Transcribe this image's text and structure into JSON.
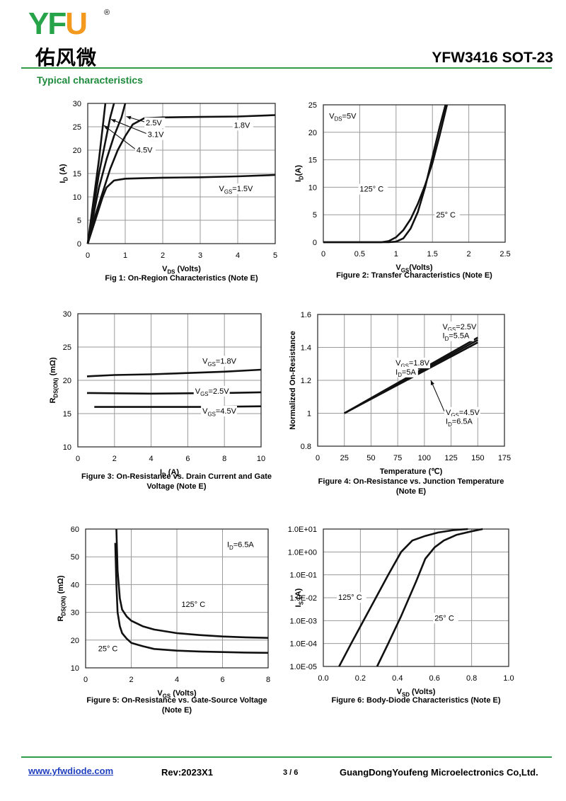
{
  "header": {
    "logo_y": "Y",
    "logo_f": "F",
    "logo_u": "U",
    "logo_reg": "®",
    "logo_cn": "佑风微",
    "part_title": "YFW3416 SOT-23",
    "section_title": "Typical characteristics"
  },
  "footer": {
    "website": "www.yfwdiode.com",
    "revision": "Rev:2023X1",
    "page": "3 / 6",
    "company": "GuangDongYoufeng Microelectronics Co,Ltd."
  },
  "colors": {
    "green": "#2e9e4a",
    "orange": "#f39a1e",
    "grid": "#9a9a9a",
    "curve": "#111111"
  },
  "chart_data": [
    {
      "id": "fig1",
      "type": "line",
      "caption": "Fig 1: On-Region Characteristics (Note E)",
      "xlabel": {
        "main": "V",
        "sub": "DS",
        "tail": " (Volts)"
      },
      "ylabel": {
        "main": "I",
        "sub": "D",
        "tail": " (A)"
      },
      "xlim": [
        0,
        5
      ],
      "ylim": [
        0,
        30
      ],
      "xticks": [
        "0",
        "1",
        "2",
        "3",
        "4",
        "5"
      ],
      "yticks": [
        "0",
        "5",
        "10",
        "15",
        "20",
        "25",
        "30"
      ],
      "grid": true,
      "series": [
        {
          "name": "4.5V",
          "x": [
            0,
            0.1,
            0.2,
            0.3,
            0.4,
            0.47
          ],
          "y": [
            0,
            6,
            12,
            18,
            25,
            30
          ]
        },
        {
          "name": "3.1V",
          "x": [
            0,
            0.1,
            0.2,
            0.3,
            0.4,
            0.5,
            0.6,
            0.7
          ],
          "y": [
            0,
            5,
            10,
            15,
            19,
            23,
            27,
            30
          ]
        },
        {
          "name": "2.5V",
          "x": [
            0,
            0.1,
            0.2,
            0.3,
            0.5,
            0.7,
            0.9,
            1.0
          ],
          "y": [
            0,
            4,
            8,
            12,
            18,
            23,
            27,
            30
          ]
        },
        {
          "name": "1.8V",
          "x": [
            0,
            0.1,
            0.2,
            0.4,
            0.6,
            0.8,
            1.0,
            1.2,
            1.5,
            2,
            3,
            4,
            5
          ],
          "y": [
            0,
            3,
            6,
            11,
            16,
            20,
            23,
            25.5,
            26.8,
            27,
            27.1,
            27.2,
            27.5
          ]
        },
        {
          "name": "V_GS=1.5V",
          "x": [
            0,
            0.1,
            0.2,
            0.3,
            0.4,
            0.5,
            0.7,
            1.0,
            1.5,
            2,
            3,
            4,
            5
          ],
          "y": [
            0,
            2.5,
            5,
            7.5,
            10,
            12,
            13.5,
            13.9,
            14,
            14.1,
            14.2,
            14.4,
            14.7
          ]
        }
      ],
      "labels": [
        {
          "main": "2.5V",
          "at": [
            1.55,
            25.3
          ],
          "arrow_to": [
            1.03,
            27.2
          ]
        },
        {
          "main": "3.1V",
          "at": [
            1.6,
            22.8
          ],
          "arrow_to": [
            0.62,
            26.6
          ]
        },
        {
          "main": "4.5V",
          "at": [
            1.3,
            19.5
          ],
          "arrow_to": [
            0.43,
            25.3
          ]
        },
        {
          "main": "1.8V",
          "at": [
            3.9,
            24.8
          ]
        },
        {
          "main": "V",
          "sub": "GS",
          "tail": "=1.5V",
          "at": [
            3.5,
            11.2
          ]
        }
      ]
    },
    {
      "id": "fig2",
      "type": "line",
      "caption": "Figure 2: Transfer Characteristics (Note E)",
      "xlabel": {
        "main": "V",
        "sub": "GS",
        "tail": "(Volts)"
      },
      "ylabel": {
        "main": "I",
        "sub": "D",
        "tail": "(A)"
      },
      "xlim": [
        0,
        2.5
      ],
      "ylim": [
        0,
        25
      ],
      "xticks": [
        "0",
        "0.5",
        "1",
        "1.5",
        "2",
        "2.5"
      ],
      "yticks": [
        "0",
        "5",
        "10",
        "15",
        "20",
        "25"
      ],
      "grid": true,
      "series": [
        {
          "name": "125° C",
          "x": [
            0,
            0.8,
            0.9,
            1.0,
            1.1,
            1.2,
            1.3,
            1.4,
            1.5,
            1.6,
            1.7
          ],
          "y": [
            0,
            0,
            0.2,
            0.9,
            2.2,
            4.2,
            7,
            10.4,
            14.4,
            19.5,
            25
          ]
        },
        {
          "name": "25° C",
          "x": [
            0,
            0.9,
            1.0,
            1.1,
            1.2,
            1.3,
            1.4,
            1.5,
            1.6,
            1.68
          ],
          "y": [
            0,
            0,
            0.1,
            0.7,
            2.5,
            5.5,
            10,
            15.5,
            21,
            25
          ]
        }
      ],
      "labels": [
        {
          "main": "V",
          "sub": "DS",
          "tail": "=5V",
          "at": [
            0.08,
            22.5
          ]
        },
        {
          "main": "125° C",
          "at": [
            0.5,
            9.2
          ]
        },
        {
          "main": "25° C",
          "at": [
            1.55,
            4.5
          ]
        }
      ]
    },
    {
      "id": "fig3",
      "type": "line",
      "caption": [
        "Figure 3: On-Resistance vs. Drain Current and Gate",
        "Voltage (Note E)"
      ],
      "xlabel": {
        "main": "I",
        "sub": "D",
        "tail": " (A)"
      },
      "ylabel": {
        "main": "R",
        "sub": "DS(ON)",
        "tail": " (mΩ)"
      },
      "xlim": [
        0,
        10
      ],
      "ylim": [
        10,
        30
      ],
      "xticks": [
        "0",
        "2",
        "4",
        "6",
        "8",
        "10"
      ],
      "yticks": [
        "10",
        "15",
        "20",
        "25",
        "30"
      ],
      "grid": true,
      "series": [
        {
          "name": "V_GS=1.8V",
          "x": [
            0.5,
            2,
            4,
            6,
            8,
            10
          ],
          "y": [
            20.6,
            20.8,
            20.9,
            21.1,
            21.3,
            21.6
          ]
        },
        {
          "name": "V_GS=2.5V",
          "x": [
            0.5,
            2,
            4,
            6,
            8,
            10
          ],
          "y": [
            18.1,
            18.05,
            18.0,
            18.05,
            18.1,
            18.2
          ]
        },
        {
          "name": "V_GS=4.5V",
          "x": [
            0.9,
            3,
            5,
            7,
            10
          ],
          "y": [
            16.0,
            16.0,
            16.0,
            16.0,
            16.1
          ]
        }
      ],
      "labels": [
        {
          "main": "V",
          "sub": "GS",
          "tail": "=1.8V",
          "at": [
            6.8,
            22.5
          ]
        },
        {
          "main": "V",
          "sub": "GS",
          "tail": "=2.5V",
          "at": [
            6.4,
            18.0
          ]
        },
        {
          "main": "V",
          "sub": "GS",
          "tail": "=4.5V",
          "at": [
            6.8,
            15.0
          ]
        }
      ]
    },
    {
      "id": "fig4",
      "type": "line",
      "caption": [
        "Figure 4: On-Resistance vs. Junction Temperature",
        "(Note E)"
      ],
      "xlabel": {
        "main": "Temperature (℃)"
      },
      "ylabel": {
        "main": "Normalized On-Resistance"
      },
      "xlim": [
        0,
        175
      ],
      "ylim": [
        0.8,
        1.6
      ],
      "xticks": [
        "0",
        "25",
        "50",
        "75",
        "100",
        "125",
        "150",
        "175"
      ],
      "yticks": [
        "0.8",
        "1",
        "1.2",
        "1.4",
        "1.6"
      ],
      "grid": true,
      "series": [
        {
          "name": "V_GS=2.5V, I_D=5.5A",
          "x": [
            25,
            150
          ],
          "y": [
            1.0,
            1.46
          ]
        },
        {
          "name": "V_GS=1.8V, I_D=5A",
          "x": [
            25,
            150
          ],
          "y": [
            1.0,
            1.445
          ]
        },
        {
          "name": "V_GS=4.5V, I_D=6.5A",
          "x": [
            25,
            150
          ],
          "y": [
            1.0,
            1.43
          ]
        }
      ],
      "labels": [
        {
          "main": "V",
          "sub": "GS",
          "tail": "=2.5V",
          "at": [
            117,
            1.51
          ],
          "arrow_to": [
            140,
            1.455
          ]
        },
        {
          "main": "I",
          "sub": "D",
          "tail": "=5.5A",
          "at": [
            117,
            1.455
          ]
        },
        {
          "main": "V",
          "sub": "GS",
          "tail": "=1.8V",
          "at": [
            73,
            1.29
          ],
          "arrow_to": [
            98,
            1.27
          ]
        },
        {
          "main": "I",
          "sub": "D",
          "tail": "=5A",
          "at": [
            73,
            1.235
          ]
        },
        {
          "main": "V",
          "sub": "GS",
          "tail": "=4.5V",
          "at": [
            120,
            0.99
          ],
          "arrow_to": [
            106,
            1.2
          ]
        },
        {
          "main": "I",
          "sub": "D",
          "tail": "=6.5A",
          "at": [
            120,
            0.935
          ]
        }
      ]
    },
    {
      "id": "fig5",
      "type": "line",
      "caption": [
        "Figure 5: On-Resistance vs. Gate-Source Voltage",
        "(Note E)"
      ],
      "xlabel": {
        "main": "V",
        "sub": "GS",
        "tail": " (Volts)"
      },
      "ylabel": {
        "main": "R",
        "sub": "DS(ON)",
        "tail": " (mΩ)"
      },
      "xlim": [
        0,
        8
      ],
      "ylim": [
        10,
        60
      ],
      "xticks": [
        "0",
        "2",
        "4",
        "6",
        "8"
      ],
      "yticks": [
        "10",
        "20",
        "30",
        "40",
        "50",
        "60"
      ],
      "grid": true,
      "series": [
        {
          "name": "125° C",
          "x": [
            1.35,
            1.4,
            1.5,
            1.6,
            1.8,
            2,
            2.5,
            3,
            4,
            5,
            6,
            7,
            8
          ],
          "y": [
            60,
            45,
            35,
            31,
            28.5,
            27,
            25,
            23.8,
            22.5,
            21.8,
            21.3,
            21.0,
            20.8
          ]
        },
        {
          "name": "25° C",
          "x": [
            1.3,
            1.35,
            1.4,
            1.5,
            1.6,
            1.8,
            2,
            2.5,
            3,
            4,
            5,
            6,
            7,
            8
          ],
          "y": [
            55,
            40,
            30,
            25,
            22.5,
            20.5,
            19,
            17.8,
            16.8,
            16.2,
            15.9,
            15.7,
            15.5,
            15.4
          ]
        }
      ],
      "labels": [
        {
          "main": "I",
          "sub": "D",
          "tail": "=6.5A",
          "at": [
            6.2,
            53.5
          ]
        },
        {
          "main": "125° C",
          "at": [
            4.2,
            32
          ]
        },
        {
          "main": "25° C",
          "at": [
            0.55,
            16
          ]
        }
      ]
    },
    {
      "id": "fig6",
      "type": "line",
      "caption": "Figure 6: Body-Diode Characteristics (Note E)",
      "xlabel": {
        "main": "V",
        "sub": "SD",
        "tail": " (Volts)"
      },
      "ylabel": {
        "main": "I",
        "sub": "S",
        "tail": " (A)"
      },
      "xlim": [
        0,
        1.0
      ],
      "ylim": [
        -5,
        1
      ],
      "yscale": "log",
      "xticks": [
        "0.0",
        "0.2",
        "0.4",
        "0.6",
        "0.8",
        "1.0"
      ],
      "yticks": [
        "1.0E-05",
        "1.0E-04",
        "1.0E-03",
        "1.0E-02",
        "1.0E-01",
        "1.0E+00",
        "1.0E+01"
      ],
      "grid": true,
      "series": [
        {
          "name": "125° C",
          "x": [
            0.085,
            0.15,
            0.25,
            0.35,
            0.42,
            0.48,
            0.55,
            0.62,
            0.7,
            0.78
          ],
          "y": [
            -5,
            -4,
            -2.5,
            -1,
            0,
            0.5,
            0.7,
            0.85,
            0.95,
            1
          ]
        },
        {
          "name": "25° C",
          "x": [
            0.29,
            0.35,
            0.42,
            0.5,
            0.55,
            0.6,
            0.65,
            0.72,
            0.8,
            0.86
          ],
          "y": [
            -5,
            -4,
            -2.8,
            -1.3,
            -0.3,
            0.2,
            0.5,
            0.75,
            0.9,
            1
          ]
        }
      ],
      "labels": [
        {
          "main": "125° C",
          "at": [
            0.08,
            -2.1
          ]
        },
        {
          "main": "25° C",
          "at": [
            0.6,
            -3.0
          ]
        }
      ]
    }
  ]
}
